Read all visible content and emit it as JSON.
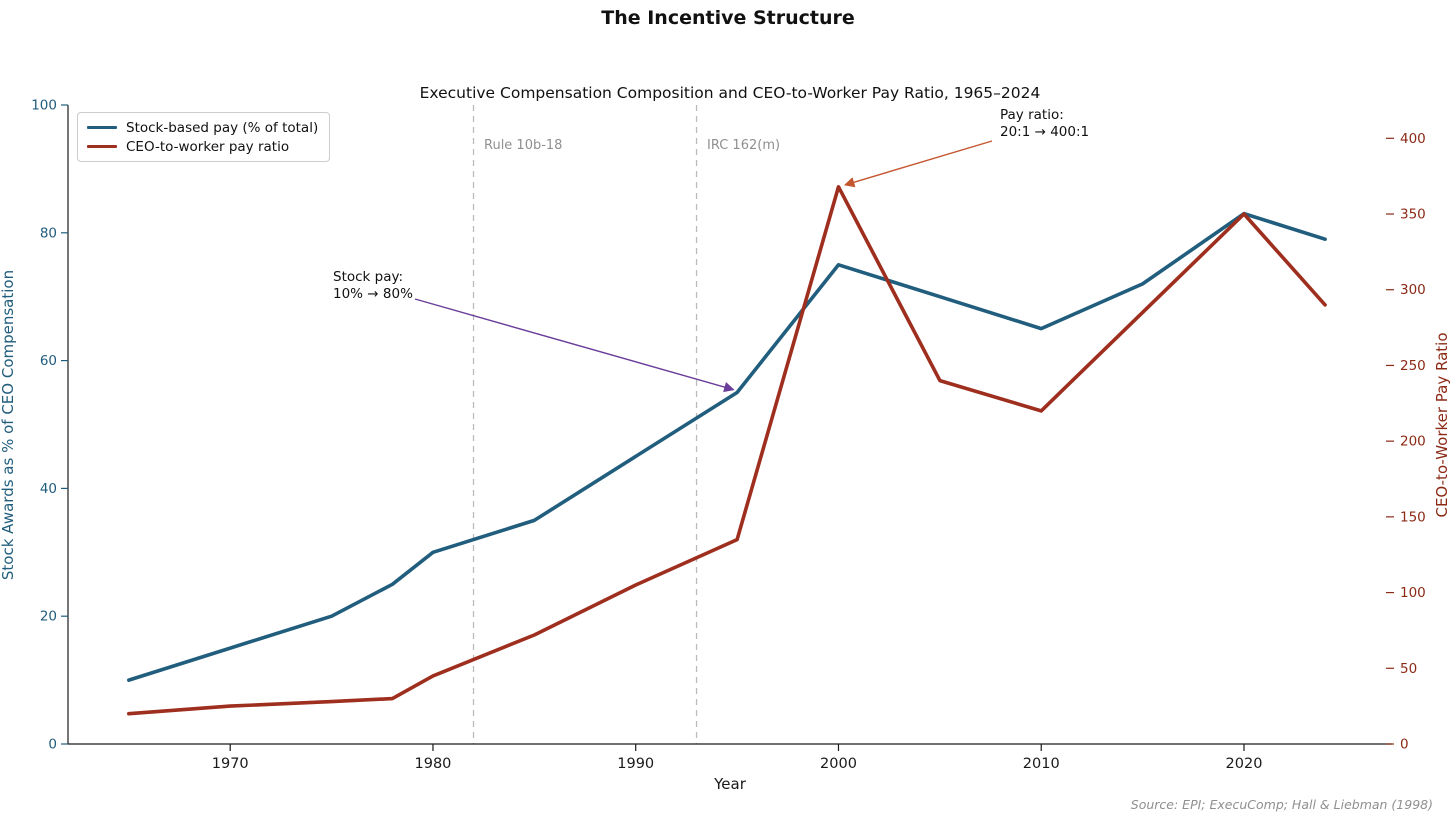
{
  "figure": {
    "main_title": "The Incentive Structure",
    "source_note": "Source: EPI; ExecuComp; Hall & Liebman (1998)"
  },
  "chart_data": {
    "type": "line",
    "title": "Executive Compensation Composition and CEO-to-Worker Pay Ratio, 1965–2024",
    "xlabel": "Year",
    "x_ticks": [
      1970,
      1980,
      1990,
      2000,
      2010,
      2020
    ],
    "x": [
      1965,
      1970,
      1975,
      1978,
      1980,
      1985,
      1990,
      1995,
      2000,
      2005,
      2010,
      2015,
      2020,
      2024
    ],
    "series": [
      {
        "name": "Stock-based pay (% of total)",
        "axis": "left",
        "color": "#215d7d",
        "values": [
          10,
          15,
          20,
          25,
          30,
          35,
          45,
          55,
          75,
          70,
          65,
          72,
          83,
          79
        ]
      },
      {
        "name": "CEO-to-worker pay ratio",
        "axis": "right",
        "color": "#9e2e1e",
        "values": [
          20,
          25,
          28,
          30,
          45,
          72,
          105,
          135,
          368,
          240,
          220,
          285,
          350,
          290
        ]
      }
    ],
    "axes": {
      "left": {
        "label": "Stock Awards as % of CEO Compensation",
        "ticks": [
          0,
          20,
          40,
          60,
          80,
          100
        ],
        "range": [
          0,
          100
        ],
        "color": "#215d7d"
      },
      "right": {
        "label": "CEO-to-Worker Pay Ratio",
        "ticks": [
          0,
          50,
          100,
          150,
          200,
          250,
          300,
          350,
          400
        ],
        "range": [
          0,
          422
        ],
        "color": "#8b2a15"
      }
    },
    "events": [
      {
        "year": 1982,
        "label": "Rule 10b-18"
      },
      {
        "year": 1993,
        "label": "IRC 162(m)"
      }
    ],
    "annotations": [
      {
        "id": "stock-pay",
        "lines": [
          "Stock pay:",
          "10% → 80%"
        ],
        "axis": "left",
        "target_year": 1995,
        "target_value": 55,
        "arrow_color": "#6a3d9a"
      },
      {
        "id": "pay-ratio",
        "lines": [
          "Pay ratio:",
          "20:1 → 400:1"
        ],
        "axis": "right",
        "target_year": 2000,
        "target_value": 368,
        "arrow_color": "#c4562f"
      }
    ],
    "legend_position": "upper-left",
    "grid": false,
    "xlim": [
      1962,
      2027.3
    ]
  }
}
